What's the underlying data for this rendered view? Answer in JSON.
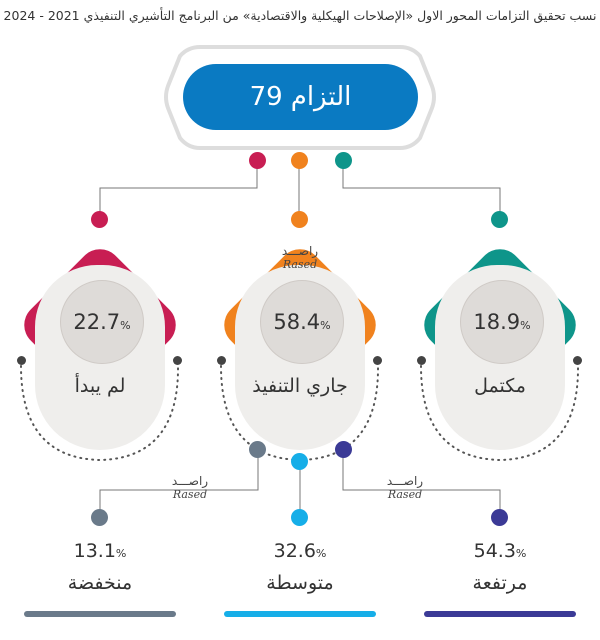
{
  "title": "نسب تحقيق التزامات المحور الاول «الإصلاحات الهيكلية والاقتصادية» من البرنامج التأشيري التنفيذي 2021 - 2024",
  "total": {
    "number": "79",
    "label": "التزام",
    "color": "#0a7ac2"
  },
  "watermark": {
    "ar": "راصـــد",
    "en": "Rased"
  },
  "status": [
    {
      "label": "لم يبدأ",
      "value": "22.7",
      "unit": "%",
      "color": "#c81e53"
    },
    {
      "label": "جاري التنفيذ",
      "value": "58.4",
      "unit": "%",
      "color": "#f0821e"
    },
    {
      "label": "مكتمل",
      "value": "18.9",
      "unit": "%",
      "color": "#0e958a"
    }
  ],
  "levels": [
    {
      "label": "منخفضة",
      "value": "13.1",
      "unit": "%",
      "color": "#6a7a8a"
    },
    {
      "label": "متوسطة",
      "value": "32.6",
      "unit": "%",
      "color": "#16aee8"
    },
    {
      "label": "مرتفعة",
      "value": "54.3",
      "unit": "%",
      "color": "#3b3a96"
    }
  ]
}
